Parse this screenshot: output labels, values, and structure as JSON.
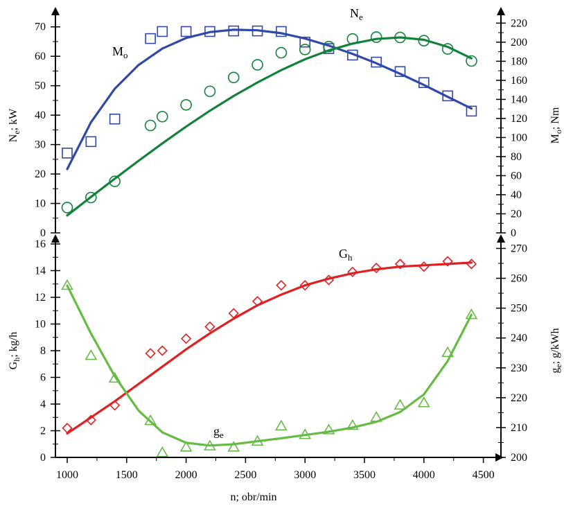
{
  "chart_data": [
    {
      "type": "line",
      "panel": "top",
      "xlabel": "n; obr/min",
      "xlim": [
        800,
        4600
      ],
      "x_ticks": [
        1000,
        1500,
        2000,
        2500,
        3000,
        3500,
        4000,
        4500
      ],
      "y_left": {
        "label_main": "N",
        "label_sub": "e",
        "label_rest": "; kW",
        "lim": [
          0,
          73
        ],
        "ticks": [
          0,
          10,
          20,
          30,
          40,
          50,
          60,
          70
        ]
      },
      "y_right": {
        "label_main": "M",
        "label_sub": "o",
        "label_rest": "; Nm",
        "lim": [
          0,
          225.35
        ],
        "ticks": [
          0,
          20,
          40,
          60,
          80,
          100,
          120,
          140,
          160,
          180,
          200,
          220
        ]
      },
      "series": [
        {
          "name": "M",
          "name_sub": "o",
          "axis": "right",
          "marker": "square",
          "color": "#3048a8",
          "points": [
            [
              1000,
              83.7
            ],
            [
              1200,
              95.7
            ],
            [
              1400,
              119.4
            ],
            [
              1700,
              203.8
            ],
            [
              1800,
              211.2
            ],
            [
              2000,
              211.2
            ],
            [
              2200,
              211.2
            ],
            [
              2400,
              211.8
            ],
            [
              2600,
              211.8
            ],
            [
              2800,
              211.2
            ],
            [
              3000,
              200.1
            ],
            [
              3200,
              193.3
            ],
            [
              3400,
              186.5
            ],
            [
              3600,
              179.1
            ],
            [
              3800,
              169.2
            ],
            [
              4000,
              157.6
            ],
            [
              4200,
              143.7
            ],
            [
              4400,
              127.7
            ]
          ],
          "fit": [
            [
              1000,
              66.9
            ],
            [
              1200,
              116
            ],
            [
              1400,
              151.1
            ],
            [
              1600,
              176.1
            ],
            [
              1800,
              193.3
            ],
            [
              2000,
              204.4
            ],
            [
              2200,
              210.6
            ],
            [
              2400,
              213.1
            ],
            [
              2600,
              212.5
            ],
            [
              2800,
              209.4
            ],
            [
              3000,
              203.8
            ],
            [
              3200,
              196.4
            ],
            [
              3400,
              187.7
            ],
            [
              3600,
              177.9
            ],
            [
              3800,
              166.8
            ],
            [
              4000,
              155.1
            ],
            [
              4200,
              142.7
            ],
            [
              4400,
              130.4
            ]
          ]
        },
        {
          "name": "N",
          "name_sub": "e",
          "axis": "left",
          "marker": "circle",
          "color": "#12813a",
          "points": [
            [
              1000,
              8.6
            ],
            [
              1200,
              12
            ],
            [
              1400,
              17.5
            ],
            [
              1700,
              36.5
            ],
            [
              1800,
              39.5
            ],
            [
              2000,
              43.5
            ],
            [
              2200,
              48.1
            ],
            [
              2400,
              52.8
            ],
            [
              2600,
              57.1
            ],
            [
              2800,
              61.2
            ],
            [
              3000,
              62.3
            ],
            [
              3200,
              63.3
            ],
            [
              3400,
              65.9
            ],
            [
              3600,
              66.5
            ],
            [
              3800,
              66.4
            ],
            [
              4000,
              65.3
            ],
            [
              4200,
              62.5
            ],
            [
              4400,
              58.4
            ]
          ],
          "fit": [
            [
              1000,
              5.9
            ],
            [
              1200,
              12.2
            ],
            [
              1400,
              18.4
            ],
            [
              1600,
              24.5
            ],
            [
              1800,
              30.4
            ],
            [
              2000,
              36.1
            ],
            [
              2200,
              41.5
            ],
            [
              2400,
              46.5
            ],
            [
              2600,
              51.1
            ],
            [
              2800,
              55.3
            ],
            [
              3000,
              59
            ],
            [
              3200,
              62
            ],
            [
              3400,
              64.3
            ],
            [
              3600,
              65.9
            ],
            [
              3800,
              66.4
            ],
            [
              4000,
              65.6
            ],
            [
              4200,
              63.2
            ],
            [
              4400,
              59.3
            ]
          ]
        }
      ]
    },
    {
      "type": "line",
      "panel": "bottom",
      "xlabel": "n; obr/min",
      "xlim": [
        800,
        4600
      ],
      "x_ticks": [
        1000,
        1500,
        2000,
        2500,
        3000,
        3500,
        4000,
        4500
      ],
      "y_left": {
        "label_main": "G",
        "label_sub": "h",
        "label_rest": "; kg/h",
        "lim": [
          0,
          16
        ],
        "ticks": [
          0,
          2,
          4,
          6,
          8,
          10,
          12,
          14,
          16
        ]
      },
      "y_right": {
        "label_main": "g",
        "label_sub": "e",
        "label_rest": "; g/kWh",
        "lim": [
          200,
          271.5
        ],
        "ticks": [
          200,
          210,
          220,
          230,
          240,
          250,
          260,
          270
        ]
      },
      "series": [
        {
          "name": "G",
          "name_sub": "h",
          "axis": "left",
          "marker": "diamond",
          "color": "#e02020",
          "points": [
            [
              1000,
              2.2
            ],
            [
              1200,
              2.8
            ],
            [
              1400,
              3.9
            ],
            [
              1700,
              7.8
            ],
            [
              1800,
              8
            ],
            [
              2000,
              8.9
            ],
            [
              2200,
              9.8
            ],
            [
              2400,
              10.8
            ],
            [
              2600,
              11.7
            ],
            [
              2800,
              12.9
            ],
            [
              3000,
              12.9
            ],
            [
              3200,
              13.3
            ],
            [
              3400,
              13.9
            ],
            [
              3600,
              14.2
            ],
            [
              3800,
              14.5
            ],
            [
              4000,
              14.3
            ],
            [
              4200,
              14.7
            ],
            [
              4400,
              14.5
            ]
          ],
          "fit": [
            [
              1000,
              1.8
            ],
            [
              1200,
              3
            ],
            [
              1400,
              4.2
            ],
            [
              1600,
              5.5
            ],
            [
              1800,
              6.8
            ],
            [
              2000,
              8.1
            ],
            [
              2200,
              9.3
            ],
            [
              2400,
              10.4
            ],
            [
              2600,
              11.4
            ],
            [
              2800,
              12.2
            ],
            [
              3000,
              12.9
            ],
            [
              3200,
              13.4
            ],
            [
              3400,
              13.8
            ],
            [
              3600,
              14.1
            ],
            [
              3800,
              14.3
            ],
            [
              4000,
              14.4
            ],
            [
              4200,
              14.5
            ],
            [
              4400,
              14.6
            ]
          ]
        },
        {
          "name": "g",
          "name_sub": "e",
          "axis": "right",
          "marker": "triangle",
          "color": "#66bb44",
          "points": [
            [
              1000,
              257.6
            ],
            [
              1200,
              234.1
            ],
            [
              1400,
              226.5
            ],
            [
              1700,
              212.3
            ],
            [
              1800,
              201.6
            ],
            [
              2000,
              203.4
            ],
            [
              2200,
              203.8
            ],
            [
              2400,
              203.4
            ],
            [
              2600,
              205.4
            ],
            [
              2800,
              210.5
            ],
            [
              3000,
              207.6
            ],
            [
              3200,
              209.2
            ],
            [
              3400,
              210.7
            ],
            [
              3600,
              213.4
            ],
            [
              3800,
              217.5
            ],
            [
              4000,
              218.3
            ],
            [
              4200,
              235.1
            ],
            [
              4400,
              247.8
            ]
          ],
          "fit": [
            [
              1000,
              257.6
            ],
            [
              1200,
              241.5
            ],
            [
              1400,
              227.2
            ],
            [
              1600,
              215.7
            ],
            [
              1800,
              208.4
            ],
            [
              2000,
              204.9
            ],
            [
              2200,
              204
            ],
            [
              2400,
              204.4
            ],
            [
              2600,
              205.4
            ],
            [
              2800,
              206.4
            ],
            [
              3000,
              207.5
            ],
            [
              3200,
              208.6
            ],
            [
              3400,
              210
            ],
            [
              3600,
              211.9
            ],
            [
              3800,
              215.2
            ],
            [
              4000,
              221.1
            ],
            [
              4200,
              232.3
            ],
            [
              4400,
              247.8
            ]
          ]
        }
      ]
    }
  ]
}
